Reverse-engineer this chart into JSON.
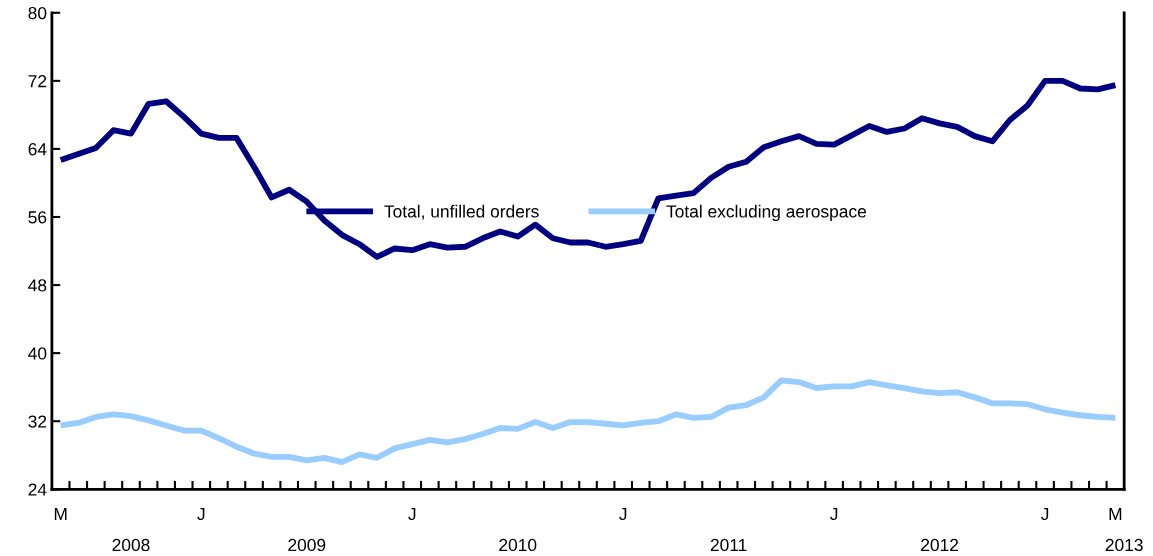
{
  "chart_data": {
    "type": "line",
    "categories": [
      "M",
      null,
      null,
      null,
      null,
      null,
      null,
      null,
      "J",
      null,
      null,
      null,
      null,
      null,
      null,
      null,
      null,
      null,
      null,
      null,
      "J",
      null,
      null,
      null,
      null,
      null,
      null,
      null,
      null,
      null,
      null,
      null,
      "J",
      null,
      null,
      null,
      null,
      null,
      null,
      null,
      null,
      null,
      null,
      null,
      "J",
      null,
      null,
      null,
      null,
      null,
      null,
      null,
      null,
      null,
      null,
      null,
      "J",
      null,
      null,
      null,
      "M"
    ],
    "series": [
      {
        "name": "Total, unfilled orders",
        "color": "#000080",
        "values": [
          62.7,
          63.4,
          64.1,
          66.2,
          65.8,
          69.3,
          69.6,
          67.8,
          65.8,
          65.3,
          65.3,
          61.9,
          58.3,
          59.2,
          57.8,
          55.6,
          53.9,
          52.8,
          51.3,
          52.3,
          52.1,
          52.8,
          52.4,
          52.5,
          53.5,
          54.3,
          53.7,
          55.1,
          53.5,
          53.0,
          53.0,
          52.5,
          52.8,
          53.2,
          58.2,
          58.5,
          58.8,
          60.6,
          61.9,
          62.5,
          64.2,
          64.9,
          65.5,
          64.6,
          64.5,
          65.6,
          66.7,
          66.0,
          66.4,
          67.6,
          67.0,
          66.6,
          65.5,
          64.9,
          67.4,
          69.1,
          72.0,
          72.0,
          71.1,
          71.0,
          71.5
        ]
      },
      {
        "name": "Total excluding aerospace",
        "color": "#99ccff",
        "values": [
          31.5,
          31.8,
          32.5,
          32.8,
          32.6,
          32.1,
          31.5,
          30.9,
          30.9,
          30.0,
          29.0,
          28.2,
          27.8,
          27.8,
          27.4,
          27.7,
          27.2,
          28.1,
          27.7,
          28.8,
          29.3,
          29.8,
          29.5,
          29.9,
          30.5,
          31.2,
          31.1,
          31.9,
          31.2,
          31.9,
          31.9,
          31.7,
          31.5,
          31.8,
          32.0,
          32.8,
          32.4,
          32.5,
          33.6,
          33.9,
          34.8,
          36.8,
          36.6,
          35.9,
          36.1,
          36.1,
          36.6,
          36.2,
          35.9,
          35.5,
          35.3,
          35.4,
          34.8,
          34.1,
          34.1,
          34.0,
          33.4,
          33.0,
          32.7,
          32.5,
          32.4
        ]
      }
    ],
    "ylim": [
      24,
      80
    ],
    "yticks": [
      24,
      32,
      40,
      48,
      56,
      64,
      72,
      80
    ],
    "annotations": [
      "2008",
      "2009",
      "2010",
      "2011",
      "2012",
      "2013"
    ],
    "legend": "center",
    "grid": false,
    "marker": "none",
    "line_style": "solid"
  }
}
